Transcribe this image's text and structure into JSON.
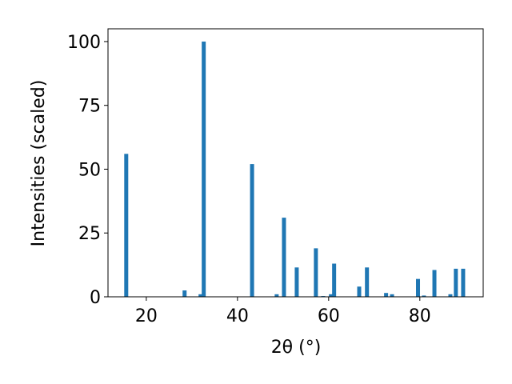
{
  "chart_data": {
    "type": "bar",
    "xlabel": "2θ (°)",
    "ylabel": "Intensities (scaled)",
    "color": "#1f77b4",
    "x": [
      15.6,
      28.4,
      31.9,
      32.6,
      43.2,
      48.6,
      50.2,
      53.0,
      57.2,
      58.8,
      60.5,
      61.2,
      66.7,
      68.4,
      72.6,
      73.9,
      79.6,
      80.9,
      83.2,
      86.7,
      87.9,
      89.5
    ],
    "values": [
      56,
      2.5,
      1,
      100,
      52,
      1,
      31,
      11.5,
      19,
      0.3,
      1,
      13,
      4,
      11.5,
      1.5,
      1,
      7,
      0.5,
      10.5,
      1,
      11,
      11
    ],
    "xlim": [
      11.6,
      93.9
    ],
    "ylim": [
      0,
      105
    ],
    "xticks": [
      20,
      40,
      60,
      80
    ],
    "yticks": [
      0,
      25,
      50,
      75,
      100
    ],
    "grid": false
  }
}
